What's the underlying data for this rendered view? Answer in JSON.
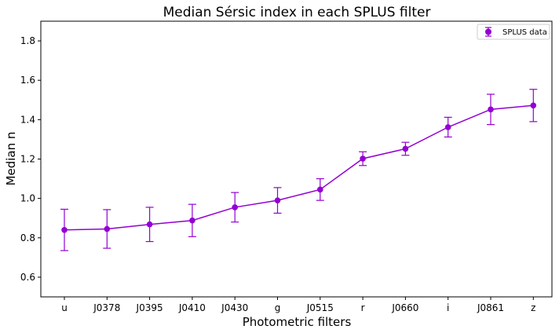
{
  "chart_data": {
    "type": "line",
    "title": "Median Sérsic index in each SPLUS filter",
    "xlabel": "Photometric filters",
    "ylabel": "Median n",
    "categories": [
      "u",
      "J0378",
      "J0395",
      "J0410",
      "J0430",
      "g",
      "J0515",
      "r",
      "J0660",
      "i",
      "J0861",
      "z"
    ],
    "series": [
      {
        "name": "SPLUS data",
        "values": [
          0.84,
          0.845,
          0.868,
          0.888,
          0.955,
          0.99,
          1.045,
          1.202,
          1.252,
          1.362,
          1.452,
          1.472
        ],
        "errors": [
          0.105,
          0.098,
          0.087,
          0.082,
          0.075,
          0.065,
          0.055,
          0.035,
          0.033,
          0.05,
          0.077,
          0.082
        ]
      }
    ],
    "ylim": [
      0.5,
      1.9
    ],
    "yticks": [
      0.6,
      0.8,
      1.0,
      1.2,
      1.4,
      1.6,
      1.8
    ],
    "ytick_labels": [
      "0.6",
      "0.8",
      "1.0",
      "1.2",
      "1.4",
      "1.6",
      "1.8"
    ],
    "grid": false,
    "legend_position": "top-right",
    "color": "#9400D3"
  }
}
